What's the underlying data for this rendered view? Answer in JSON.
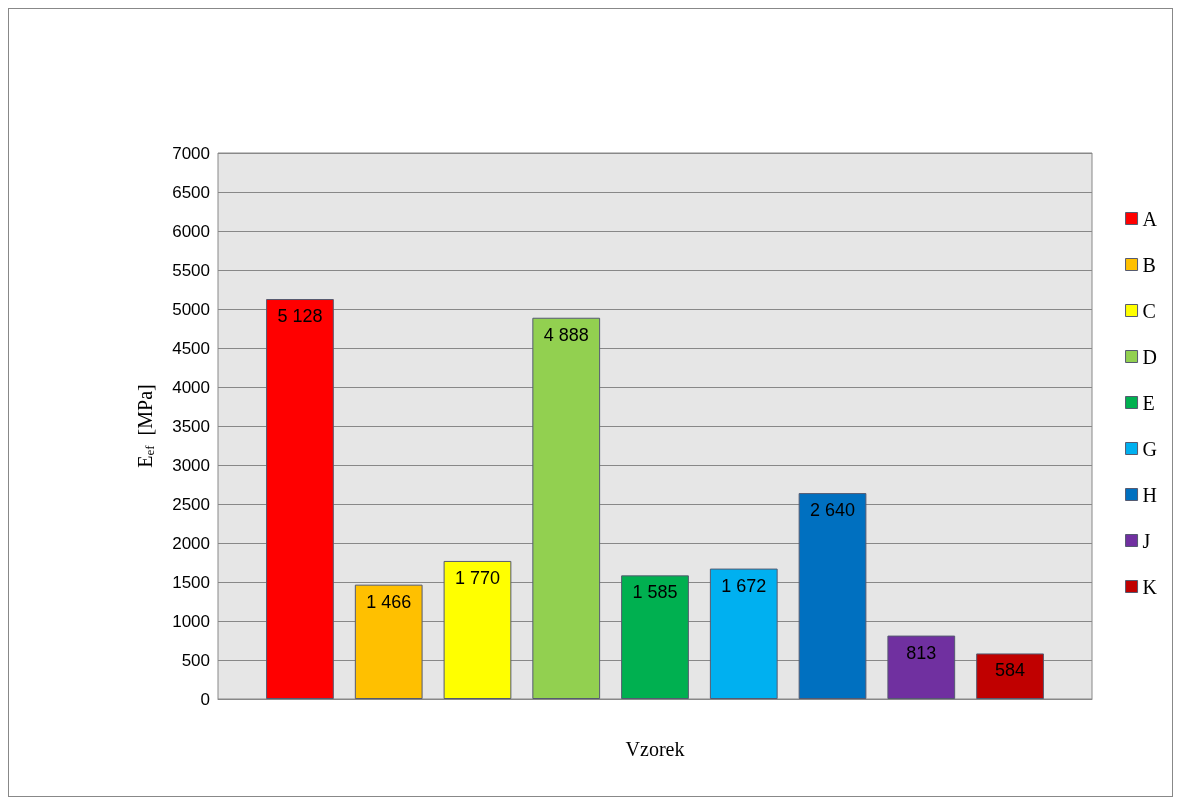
{
  "chart_data": {
    "type": "bar",
    "xlabel": "Vzorek",
    "ylabel": "E$_{ef}$  [MPa]",
    "categories": [
      null
    ],
    "series": [
      {
        "name": "A",
        "color": "#ff0000",
        "values": [
          5128
        ],
        "value_labels": [
          "5 128"
        ]
      },
      {
        "name": "B",
        "color": "#ffc000",
        "values": [
          1466
        ],
        "value_labels": [
          "1 466"
        ]
      },
      {
        "name": "C",
        "color": "#ffff00",
        "values": [
          1770
        ],
        "value_labels": [
          "1 770"
        ]
      },
      {
        "name": "D",
        "color": "#92d050",
        "values": [
          4888
        ],
        "value_labels": [
          "4 888"
        ]
      },
      {
        "name": "E",
        "color": "#00b050",
        "values": [
          1585
        ],
        "value_labels": [
          "1 585"
        ]
      },
      {
        "name": "G",
        "color": "#00b0f0",
        "values": [
          1672
        ],
        "value_labels": [
          "1 672"
        ]
      },
      {
        "name": "H",
        "color": "#0070c0",
        "values": [
          2640
        ],
        "value_labels": [
          "2 640"
        ]
      },
      {
        "name": "J",
        "color": "#7030a0",
        "values": [
          813
        ],
        "value_labels": [
          "813"
        ]
      },
      {
        "name": "K",
        "color": "#c00000",
        "values": [
          584
        ],
        "value_labels": [
          "584"
        ]
      }
    ],
    "ylim": [
      0,
      7000
    ],
    "yticks": [
      0,
      500,
      1000,
      1500,
      2000,
      2500,
      3000,
      3500,
      4000,
      4500,
      5000,
      5500,
      6000,
      6500,
      7000
    ],
    "grid": "y",
    "legend": "right"
  }
}
